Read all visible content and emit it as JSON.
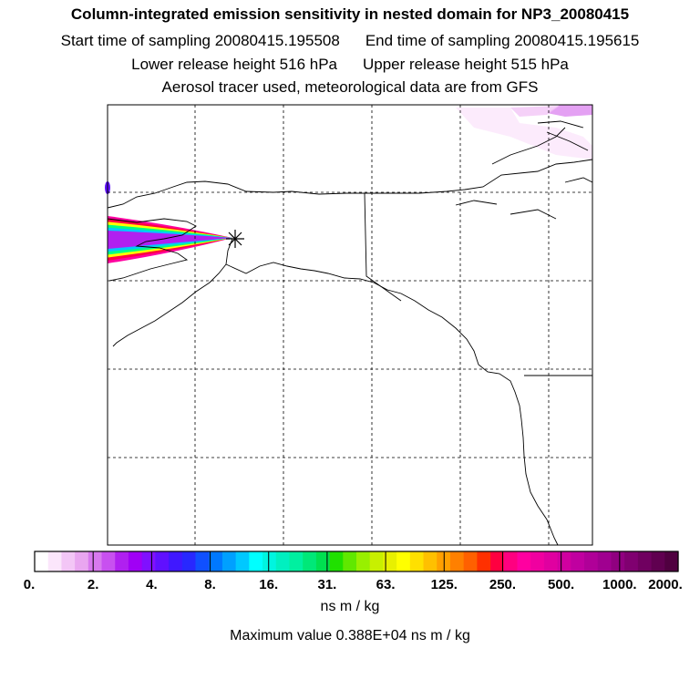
{
  "header": {
    "title": "Column-integrated emission sensitivity in nested domain for NP3_20080415",
    "start_time": "Start time of sampling 20080415.195508",
    "end_time": "End time of sampling 20080415.195615",
    "lower_height": "Lower release height  516 hPa",
    "upper_height": "Upper release height  515 hPa",
    "tracer_note": "Aerosol tracer used, meteorological data are from GFS"
  },
  "colorbar": {
    "tick_labels": [
      "0.",
      "2.",
      "4.",
      "8.",
      "16.",
      "31.",
      "63.",
      "125.",
      "250.",
      "500.",
      "1000.",
      "2000."
    ],
    "unit": "ns m / kg",
    "colors": [
      "#ffffff",
      "#fbe6fb",
      "#f3c6f6",
      "#e9a6f0",
      "#d879ee",
      "#c850f0",
      "#b020f0",
      "#a000f5",
      "#8010ff",
      "#6010ff",
      "#4018ff",
      "#2828ff",
      "#1050ff",
      "#0078ff",
      "#00a0ff",
      "#00c8ff",
      "#00ffff",
      "#00f5e0",
      "#00f0c0",
      "#00f0a0",
      "#00e878",
      "#00e050",
      "#20e000",
      "#60e800",
      "#98f000",
      "#c8f000",
      "#e8f000",
      "#ffff00",
      "#ffe000",
      "#ffc000",
      "#ffa000",
      "#ff8000",
      "#ff6000",
      "#ff3000",
      "#ff0040",
      "#ff0080",
      "#ff00a0",
      "#f000a0",
      "#e000a0",
      "#d000a0",
      "#c000a0",
      "#b00098",
      "#a00090",
      "#900080",
      "#800070",
      "#700060",
      "#600050",
      "#500040"
    ]
  },
  "maximum_value": "Maximum value  0.388E+04 ns m / kg",
  "map": {
    "domain": "nested domain",
    "release_marker": "star-marker",
    "plume_colors": [
      "#ff00a0",
      "#ff0040",
      "#ffff00",
      "#00ff80",
      "#00c8ff",
      "#b020f0"
    ]
  }
}
